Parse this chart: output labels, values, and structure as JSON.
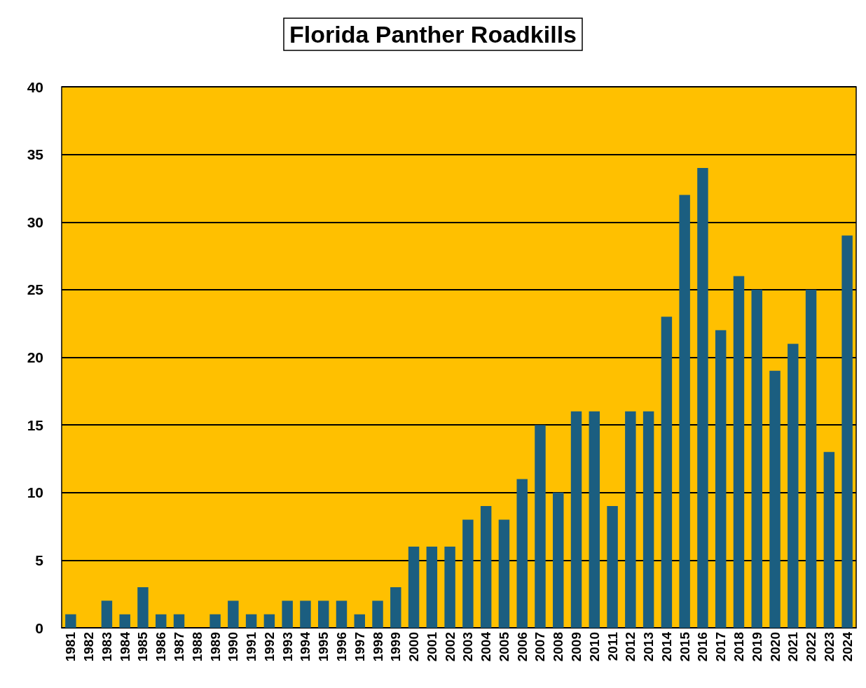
{
  "chart_data": {
    "type": "bar",
    "title": "Florida Panther Roadkills",
    "categories": [
      "1981",
      "1982",
      "1983",
      "1984",
      "1985",
      "1986",
      "1987",
      "1988",
      "1989",
      "1990",
      "1991",
      "1992",
      "1993",
      "1994",
      "1995",
      "1996",
      "1997",
      "1998",
      "1999",
      "2000",
      "2001",
      "2002",
      "2003",
      "2004",
      "2005",
      "2006",
      "2007",
      "2008",
      "2009",
      "2010",
      "2011",
      "2012",
      "2013",
      "2014",
      "2015",
      "2016",
      "2017",
      "2018",
      "2019",
      "2020",
      "2021",
      "2022",
      "2023",
      "2024"
    ],
    "values": [
      1,
      0,
      2,
      1,
      3,
      1,
      1,
      0,
      1,
      2,
      1,
      1,
      2,
      2,
      2,
      2,
      1,
      2,
      3,
      6,
      6,
      6,
      8,
      9,
      8,
      11,
      15,
      10,
      16,
      16,
      9,
      16,
      16,
      23,
      32,
      34,
      22,
      26,
      25,
      19,
      21,
      25,
      13,
      29
    ],
    "color": "#1b5e80",
    "ylim": [
      0,
      40
    ],
    "yticks": [
      0,
      5,
      10,
      15,
      20,
      25,
      30,
      35,
      40
    ],
    "grid": "y"
  }
}
